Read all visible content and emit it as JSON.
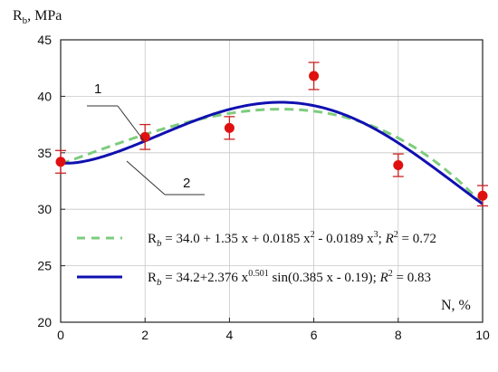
{
  "chart_data": {
    "type": "scatter",
    "ylabel": {
      "main": "R",
      "sub": "b",
      "rest": ", MPa"
    },
    "xlabel": "N, %",
    "xlim": [
      0,
      10
    ],
    "ylim": [
      20,
      45
    ],
    "x_ticks": [
      0,
      2,
      4,
      6,
      8,
      10
    ],
    "y_ticks": [
      20,
      25,
      30,
      35,
      40,
      45
    ],
    "grid": true,
    "colors": {
      "points": "#e01010",
      "errorbars": "#cc2222",
      "poly_curve": "#7dcc7d",
      "sine_curve": "#1010b0"
    },
    "points": {
      "x": [
        0,
        2,
        4,
        6,
        8,
        10
      ],
      "y": [
        34.2,
        36.4,
        37.2,
        41.8,
        33.9,
        31.2
      ],
      "err": [
        1.0,
        1.1,
        1.0,
        1.2,
        1.0,
        0.9
      ]
    },
    "curve_labels": [
      "1",
      "2"
    ],
    "legend": [
      {
        "style": "dashed",
        "main": "R",
        "sub": "b",
        "p1": " = 34.0 + 1.35 x + 0.0185 x",
        "sup1": "2",
        "p2": " - 0.0189 x",
        "sup2": "3",
        "p3": ";  ",
        "r2": "R",
        "r2sup": "2",
        "p4": " = 0.72"
      },
      {
        "style": "solid",
        "main": "R",
        "sub": "b",
        "p1": " = 34.2+2.376 x",
        "sup1": "0.501",
        "p2": " sin(0.385 x - 0.19);  ",
        "sup2": "",
        "p3": "",
        "r2": "R",
        "r2sup": "2",
        "p4": " = 0.83"
      }
    ]
  }
}
